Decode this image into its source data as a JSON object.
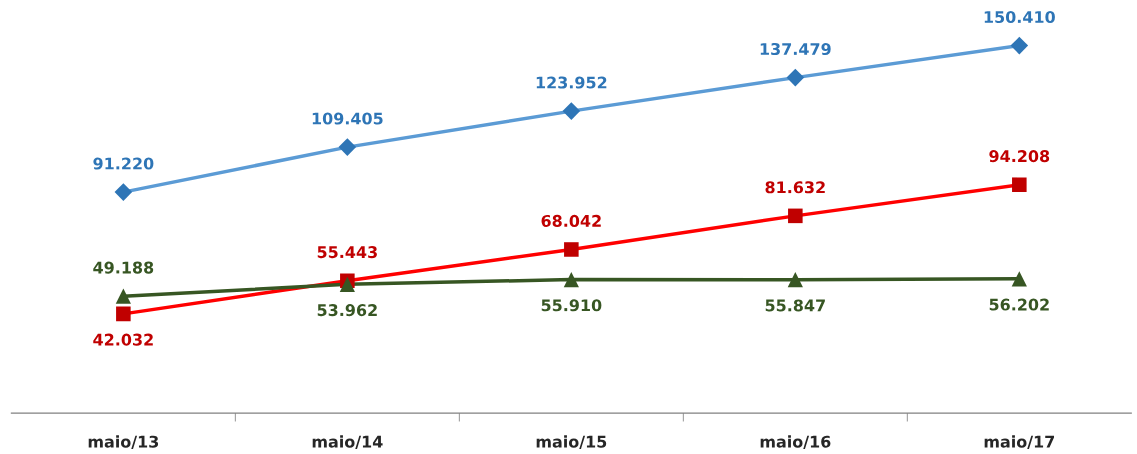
{
  "chart_data": {
    "type": "line",
    "categories": [
      "maio/13",
      "maio/14",
      "maio/15",
      "maio/16",
      "maio/17"
    ],
    "series": [
      {
        "color": "#5b9bd5",
        "colors": [
          "#2e75b6",
          "#2e75b6",
          "#2e75b6",
          "#2e75b6",
          "#2e75b6"
        ],
        "marker": "diamond",
        "values": [
          91220,
          109405,
          123952,
          137479,
          150410
        ],
        "value_labels": [
          "91.220",
          "109.405",
          "123.952",
          "137.479",
          "150.410"
        ]
      },
      {
        "color": "#ff0000",
        "colors": [
          "#c00000",
          "#c00000",
          "#c00000",
          "#c00000",
          "#c00000"
        ],
        "marker": "square",
        "values": [
          42032,
          55443,
          68042,
          81632,
          94208
        ],
        "value_labels": [
          "42.032",
          "55.443",
          "68.042",
          "81.632",
          "94.208"
        ]
      },
      {
        "color": "#375623",
        "colors": [
          "#375623",
          "#375623",
          "#375623",
          "#375623",
          "#375623"
        ],
        "marker": "triangle",
        "values": [
          49188,
          53962,
          55910,
          55847,
          56202
        ],
        "value_labels": [
          "49.188",
          "53.962",
          "55.910",
          "55.847",
          "56.202"
        ]
      }
    ],
    "line_style": "solid",
    "grid": false,
    "legend": false
  }
}
